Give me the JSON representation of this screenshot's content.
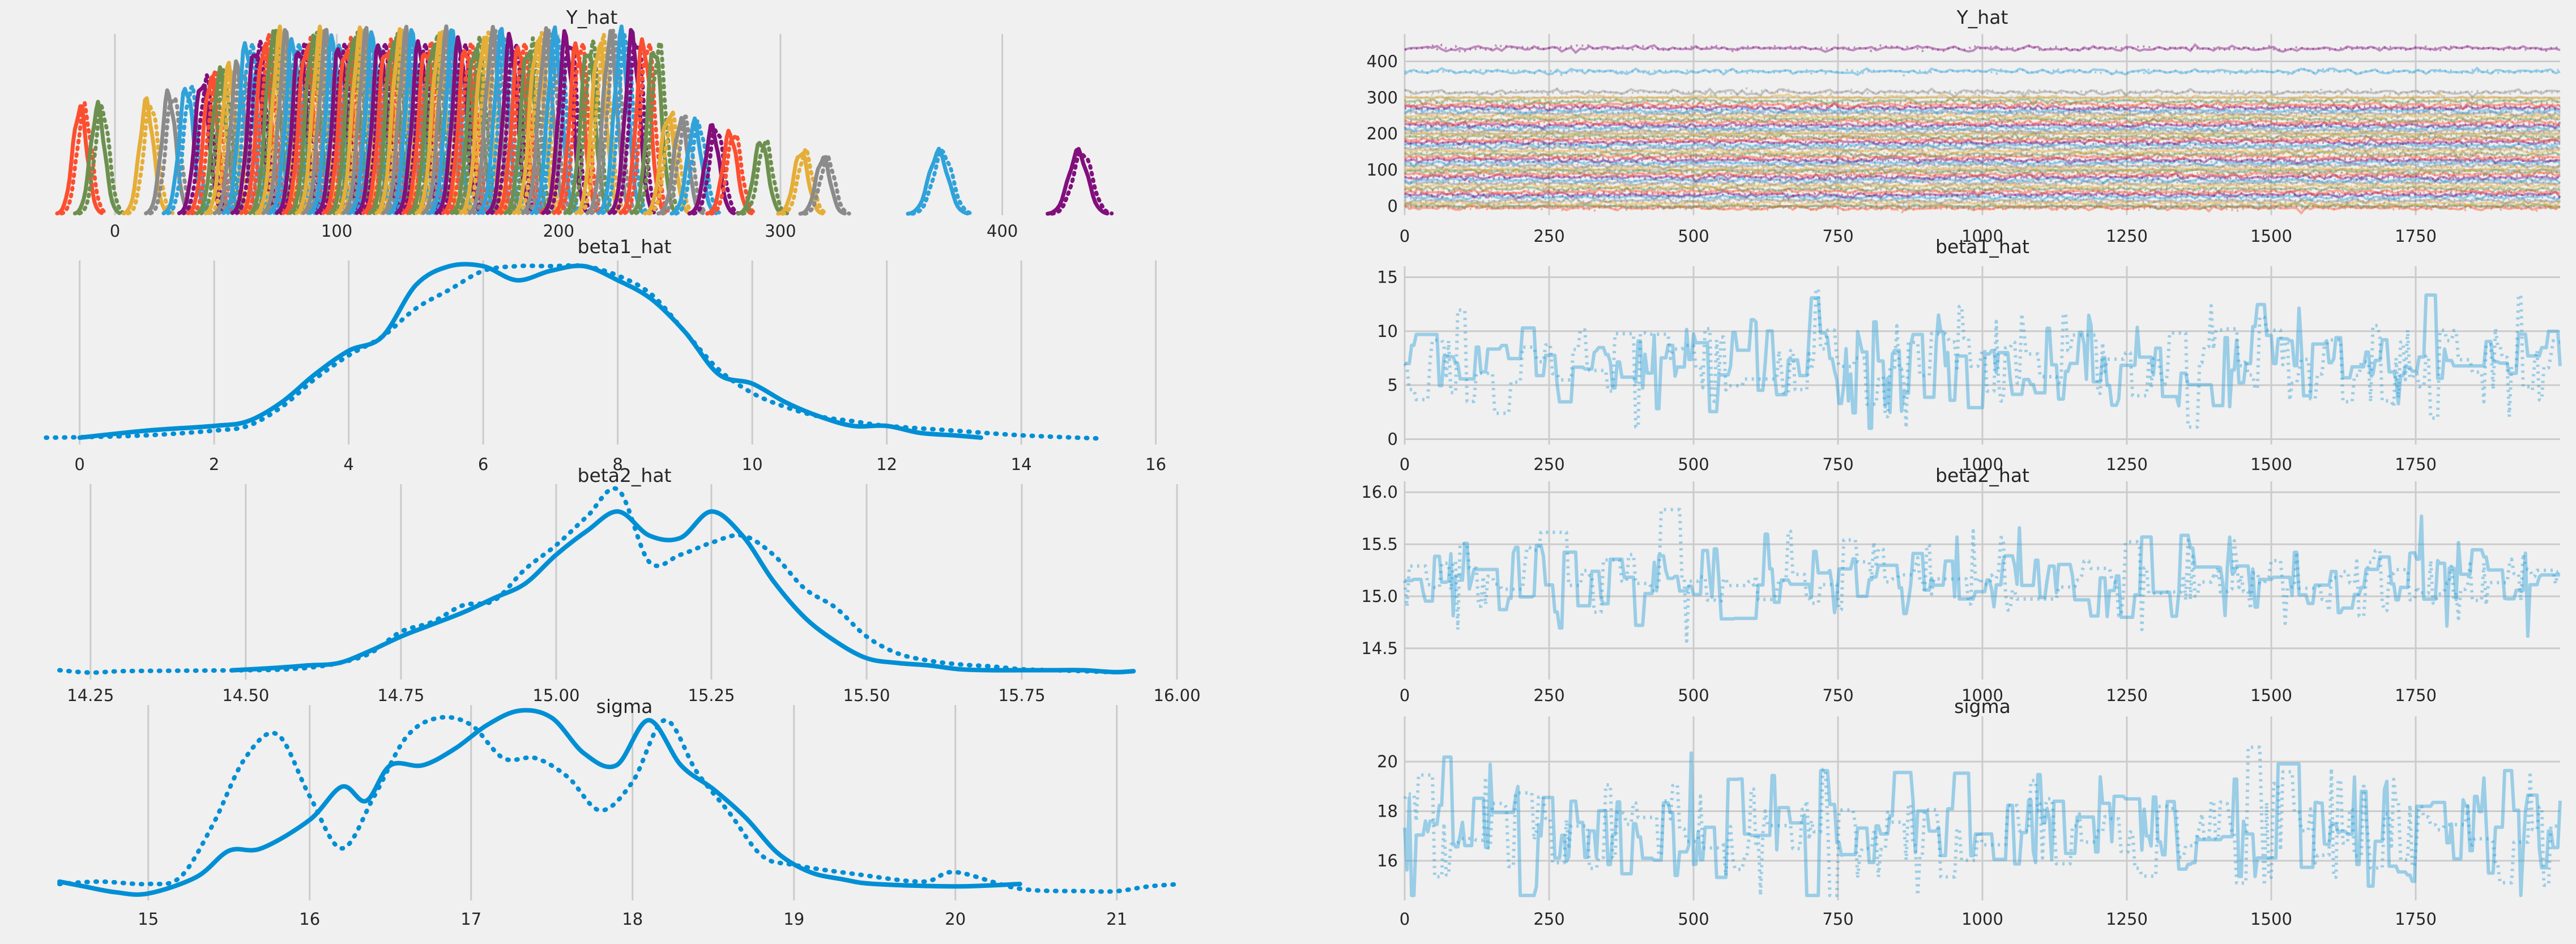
{
  "chart_data": [
    {
      "type": "line",
      "title": "Y_hat",
      "xlabel": "",
      "ylabel": "",
      "x_ticks": [
        0,
        100,
        200,
        300,
        400
      ],
      "xlim": [
        -25,
        455
      ],
      "grid": true,
      "curves": "overlaid posterior densities, one per observation (solid & dotted per chain)",
      "peaks": [
        -15,
        -7,
        15,
        25,
        33,
        40,
        44,
        48,
        52,
        56,
        60,
        64,
        68,
        72,
        75,
        78,
        81,
        84,
        87,
        90,
        93,
        96,
        99,
        102,
        105,
        108,
        111,
        114,
        117,
        120,
        123,
        126,
        129,
        132,
        135,
        138,
        141,
        144,
        147,
        150,
        153,
        156,
        159,
        163,
        167,
        171,
        175,
        179,
        183,
        187,
        191,
        195,
        199,
        204,
        209,
        214,
        219,
        224,
        229,
        234,
        239,
        244,
        250,
        256,
        262,
        270,
        278,
        292,
        310,
        320,
        372,
        435
      ],
      "colors": [
        "#fc4f30",
        "#6d904f",
        "#e5ae38",
        "#8b8b8b",
        "#30a2da",
        "#810f7c"
      ]
    },
    {
      "type": "line",
      "title": "Y_hat",
      "xlabel": "",
      "ylabel": "",
      "x_ticks": [
        0,
        250,
        500,
        750,
        1000,
        1250,
        1500,
        1750
      ],
      "y_ticks": [
        0,
        100,
        200,
        300,
        400
      ],
      "xlim": [
        0,
        2000
      ],
      "ylim": [
        -25,
        460
      ],
      "grid": true,
      "trace_levels": [
        -5,
        0,
        8,
        15,
        25,
        32,
        40,
        48,
        56,
        64,
        72,
        80,
        88,
        96,
        104,
        112,
        120,
        128,
        136,
        144,
        152,
        160,
        168,
        176,
        184,
        192,
        200,
        208,
        216,
        224,
        232,
        240,
        248,
        256,
        264,
        272,
        280,
        290,
        300,
        315,
        372,
        436
      ]
    },
    {
      "type": "line",
      "title": "beta1_hat",
      "xlabel": "",
      "ylabel": "",
      "x_ticks": [
        0,
        2,
        4,
        6,
        8,
        10,
        12,
        14,
        16
      ],
      "xlim": [
        -0.3,
        16.5
      ],
      "grid": true,
      "series": [
        {
          "style": "solid",
          "x": [
            0,
            1,
            2,
            2.5,
            3,
            3.5,
            4,
            4.5,
            5,
            5.5,
            6,
            6.5,
            7,
            7.5,
            8,
            8.5,
            9,
            9.5,
            10,
            10.5,
            11,
            11.5,
            12,
            12.5,
            13,
            13.4
          ],
          "y": [
            0.005,
            0.02,
            0.03,
            0.04,
            0.08,
            0.14,
            0.19,
            0.22,
            0.33,
            0.37,
            0.37,
            0.34,
            0.36,
            0.37,
            0.34,
            0.3,
            0.23,
            0.14,
            0.12,
            0.08,
            0.05,
            0.03,
            0.03,
            0.015,
            0.01,
            0.005
          ]
        },
        {
          "style": "dotted",
          "x": [
            -0.5,
            0,
            1,
            2,
            2.5,
            3,
            3.5,
            4,
            4.5,
            5,
            5.5,
            6,
            6.5,
            7,
            7.5,
            8,
            8.5,
            9,
            9.5,
            10,
            10.5,
            11,
            11.5,
            12,
            13,
            14,
            15.2
          ],
          "y": [
            0.005,
            0.006,
            0.01,
            0.02,
            0.03,
            0.07,
            0.13,
            0.18,
            0.22,
            0.28,
            0.32,
            0.36,
            0.37,
            0.37,
            0.37,
            0.35,
            0.31,
            0.23,
            0.15,
            0.1,
            0.07,
            0.05,
            0.04,
            0.03,
            0.02,
            0.01,
            0.003
          ]
        }
      ]
    },
    {
      "type": "line",
      "title": "beta2_hat",
      "xlabel": "",
      "ylabel": "",
      "x_ticks": [
        14.25,
        14.5,
        14.75,
        15.0,
        15.25,
        15.5,
        15.75,
        16.0
      ],
      "xlim": [
        14.2,
        16.02
      ],
      "grid": true,
      "series": [
        {
          "style": "solid",
          "x": [
            14.48,
            14.55,
            14.6,
            14.65,
            14.7,
            14.75,
            14.8,
            14.85,
            14.9,
            14.95,
            15.0,
            15.05,
            15.1,
            15.15,
            15.2,
            15.25,
            15.3,
            15.35,
            15.4,
            15.45,
            15.5,
            15.55,
            15.6,
            15.65,
            15.7,
            15.75,
            15.8,
            15.85,
            15.9,
            15.93
          ],
          "y": [
            0.1,
            0.15,
            0.2,
            0.25,
            0.5,
            0.8,
            1.05,
            1.3,
            1.6,
            1.9,
            2.5,
            3.0,
            3.4,
            2.9,
            2.85,
            3.4,
            2.9,
            1.95,
            1.2,
            0.7,
            0.35,
            0.25,
            0.2,
            0.12,
            0.1,
            0.1,
            0.1,
            0.1,
            0.06,
            0.08
          ]
        },
        {
          "style": "dotted",
          "x": [
            14.2,
            14.25,
            14.3,
            14.4,
            14.5,
            14.55,
            14.6,
            14.65,
            14.7,
            14.75,
            14.8,
            14.85,
            14.9,
            14.95,
            15.0,
            15.05,
            15.1,
            15.15,
            15.2,
            15.25,
            15.3,
            15.35,
            15.4,
            15.45,
            15.5,
            15.55,
            15.6,
            15.65,
            15.7,
            15.75,
            15.8,
            15.85,
            15.9,
            15.93
          ],
          "y": [
            0.1,
            0.05,
            0.08,
            0.09,
            0.1,
            0.11,
            0.15,
            0.25,
            0.45,
            0.9,
            1.1,
            1.45,
            1.55,
            2.2,
            2.7,
            3.3,
            3.85,
            2.35,
            2.5,
            2.75,
            2.9,
            2.5,
            1.8,
            1.4,
            0.8,
            0.45,
            0.3,
            0.22,
            0.18,
            0.12,
            0.1,
            0.08,
            0.06,
            0.08
          ]
        }
      ]
    },
    {
      "type": "line",
      "title": "sigma",
      "xlabel": "",
      "ylabel": "",
      "x_ticks": [
        15,
        16,
        17,
        18,
        19,
        20,
        21
      ],
      "xlim": [
        14.45,
        21.45
      ],
      "grid": true,
      "series": [
        {
          "style": "solid",
          "x": [
            14.45,
            14.6,
            14.8,
            15,
            15.3,
            15.5,
            15.7,
            16,
            16.2,
            16.35,
            16.5,
            16.7,
            16.9,
            17.1,
            17.3,
            17.5,
            17.7,
            17.9,
            18.1,
            18.3,
            18.5,
            18.7,
            18.9,
            19.1,
            19.3,
            19.5,
            20,
            20.4
          ],
          "y": [
            0.06,
            0.04,
            0.015,
            0.01,
            0.08,
            0.19,
            0.2,
            0.32,
            0.46,
            0.4,
            0.55,
            0.55,
            0.62,
            0.72,
            0.78,
            0.75,
            0.6,
            0.55,
            0.74,
            0.55,
            0.45,
            0.33,
            0.18,
            0.1,
            0.07,
            0.05,
            0.04,
            0.05
          ]
        },
        {
          "style": "dotted",
          "x": [
            14.45,
            14.7,
            15,
            15.2,
            15.4,
            15.6,
            15.8,
            16,
            16.2,
            16.4,
            16.6,
            16.8,
            17,
            17.2,
            17.4,
            17.6,
            17.8,
            18,
            18.2,
            18.4,
            18.6,
            18.8,
            19,
            19.4,
            19.8,
            20,
            20.4,
            20.8,
            21,
            21.2,
            21.4
          ],
          "y": [
            0.05,
            0.06,
            0.05,
            0.08,
            0.3,
            0.58,
            0.68,
            0.42,
            0.2,
            0.42,
            0.67,
            0.75,
            0.72,
            0.58,
            0.58,
            0.5,
            0.36,
            0.48,
            0.74,
            0.52,
            0.35,
            0.17,
            0.13,
            0.09,
            0.06,
            0.1,
            0.03,
            0.02,
            0.02,
            0.04,
            0.05
          ]
        }
      ]
    },
    {
      "type": "line",
      "title": "beta1_hat",
      "xlabel": "",
      "ylabel": "",
      "x_ticks": [
        0,
        250,
        500,
        750,
        1000,
        1250,
        1500,
        1750
      ],
      "y_ticks": [
        0,
        5,
        10,
        15
      ],
      "xlim": [
        0,
        2000
      ],
      "ylim": [
        -0.5,
        15.5
      ],
      "grid": true,
      "trace_summary": {
        "center": 7,
        "spread": 2.5,
        "min": 0,
        "max": 15,
        "samples": 2000,
        "chains": 2
      }
    },
    {
      "type": "line",
      "title": "beta2_hat",
      "xlabel": "",
      "ylabel": "",
      "x_ticks": [
        0,
        250,
        500,
        750,
        1000,
        1250,
        1500,
        1750
      ],
      "y_ticks": [
        14.5,
        15.0,
        15.5,
        16.0
      ],
      "xlim": [
        0,
        2000
      ],
      "ylim": [
        14.2,
        16.05
      ],
      "grid": true,
      "trace_summary": {
        "center": 15.15,
        "spread": 0.2,
        "min": 14.2,
        "max": 15.95,
        "samples": 2000,
        "chains": 2
      }
    },
    {
      "type": "line",
      "title": "sigma",
      "xlabel": "",
      "ylabel": "",
      "x_ticks": [
        0,
        250,
        500,
        750,
        1000,
        1250,
        1500,
        1750
      ],
      "y_ticks": [
        16,
        18,
        20
      ],
      "xlim": [
        0,
        2000
      ],
      "ylim": [
        14.4,
        21.6
      ],
      "grid": true,
      "trace_summary": {
        "center": 17.3,
        "spread": 1.2,
        "min": 14.6,
        "max": 21.4,
        "samples": 2000,
        "chains": 2
      }
    }
  ],
  "colors": {
    "background": "#f0f0f0",
    "grid": "#cbcbcb",
    "kde_line": "#008fd5",
    "trace_line": "#30a2da",
    "palette": [
      "#fc4f30",
      "#6d904f",
      "#e5ae38",
      "#8b8b8b",
      "#30a2da",
      "#810f7c"
    ]
  }
}
